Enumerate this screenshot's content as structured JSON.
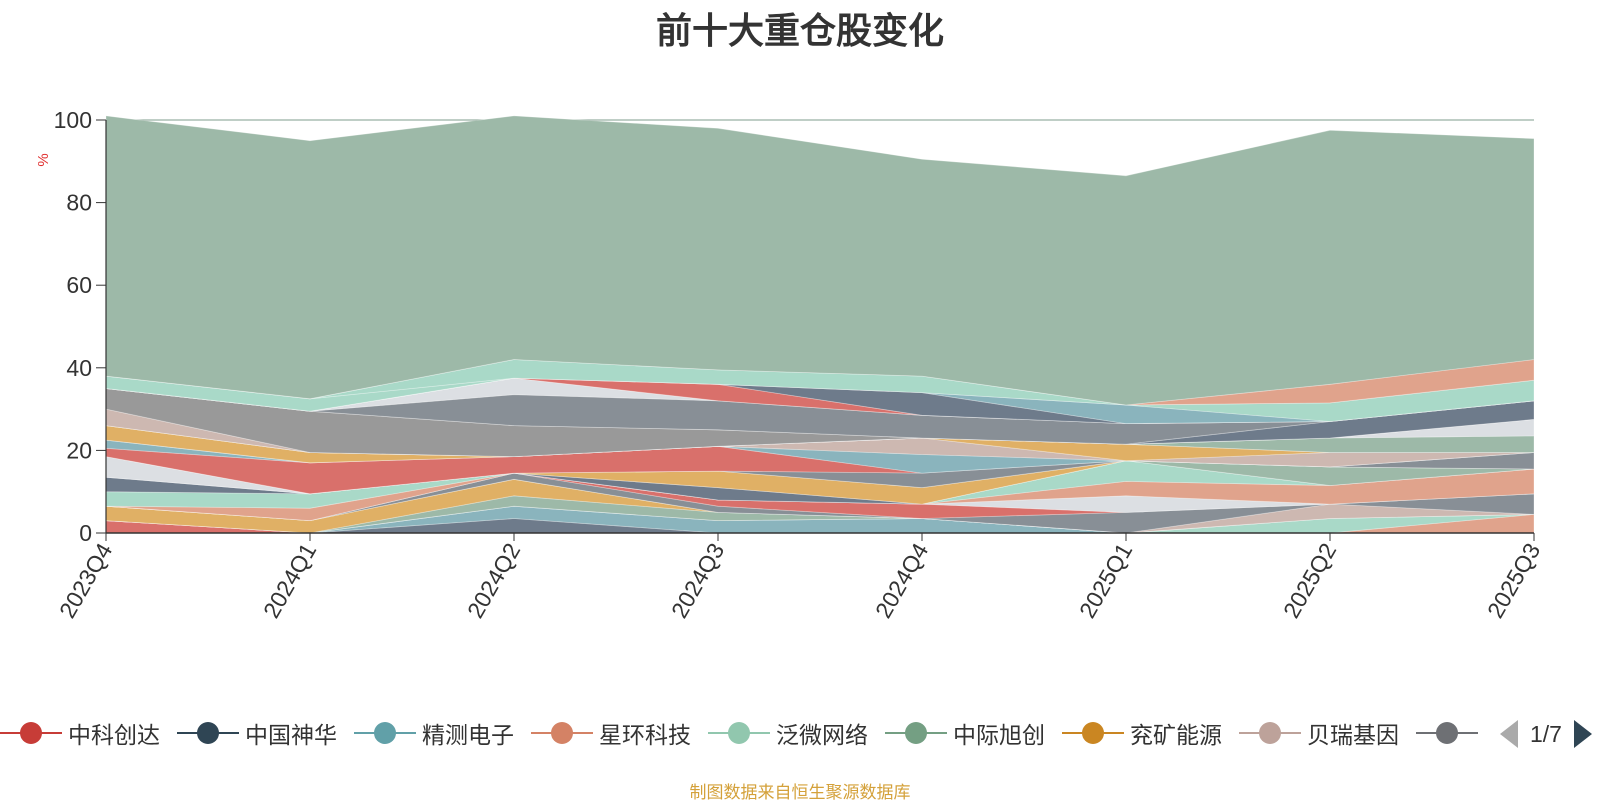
{
  "chart_data": {
    "type": "area",
    "title": "前十大重仓股变化",
    "ylabel": "%",
    "ylim": [
      0,
      100
    ],
    "yticks": [
      0,
      20,
      40,
      60,
      80,
      100
    ],
    "grid": true,
    "stacked": true,
    "legend_position": "bottom",
    "categories": [
      "2023Q4",
      "2024Q1",
      "2024Q2",
      "2024Q3",
      "2024Q4",
      "2025Q1",
      "2025Q2",
      "2025Q3"
    ],
    "series": [
      {
        "name": "中科创达",
        "color": "#d9706b",
        "values": [
          3.0,
          0,
          0,
          0,
          0,
          0,
          0,
          0
        ]
      },
      {
        "name": "中国神华",
        "color": "#6e7b8b",
        "values": [
          0,
          0,
          3.5,
          0,
          0,
          0,
          0,
          0
        ]
      },
      {
        "name": "精测电子",
        "color": "#8ab4bd",
        "values": [
          0,
          0,
          3.0,
          3.0,
          3.5,
          0,
          0,
          0
        ]
      },
      {
        "name": "星环科技",
        "color": "#e0a38c",
        "values": [
          0,
          0,
          0,
          0,
          0,
          0,
          0,
          4.5
        ]
      },
      {
        "name": "泛微网络",
        "color": "#a9d9c8",
        "values": [
          0,
          0,
          0,
          0,
          0,
          0,
          3.5,
          0
        ]
      },
      {
        "name": "中际旭创",
        "color": "#9db9a8",
        "values": [
          0,
          0,
          2.5,
          2.0,
          0,
          0,
          0,
          0
        ]
      },
      {
        "name": "兖矿能源",
        "color": "#e0b065",
        "values": [
          3.5,
          3.0,
          4.0,
          0,
          0,
          0,
          0,
          0
        ]
      },
      {
        "name": "贝瑞基因",
        "color": "#cdb8b1",
        "values": [
          0,
          0,
          0,
          0,
          0,
          0,
          3.5,
          0
        ]
      },
      {
        "name": "",
        "color": "#888f96",
        "values": [
          0,
          0,
          1.5,
          1.5,
          0,
          5.0,
          0,
          5.0
        ]
      },
      {
        "name": "",
        "color": "#d9706b",
        "values": [
          0,
          0,
          0,
          1.5,
          3.5,
          0,
          0,
          0
        ]
      },
      {
        "name": "",
        "color": "#dcdfe3",
        "values": [
          0,
          0,
          0,
          0,
          0,
          4.0,
          0,
          0
        ]
      },
      {
        "name": "",
        "color": "#e0a38c",
        "values": [
          0,
          3.0,
          0,
          0,
          0,
          3.5,
          4.5,
          6.0
        ]
      },
      {
        "name": "",
        "color": "#a9d9c8",
        "values": [
          3.5,
          3.5,
          0,
          0,
          0,
          5.0,
          0,
          0
        ]
      },
      {
        "name": "",
        "color": "#6e7b8b",
        "values": [
          3.5,
          0,
          0,
          3.0,
          0,
          0,
          0,
          0
        ]
      },
      {
        "name": "",
        "color": "#9db9a8",
        "values": [
          0,
          0,
          0,
          0,
          0,
          0,
          4.5,
          0
        ]
      },
      {
        "name": "",
        "color": "#e0b065",
        "values": [
          0,
          0,
          0,
          4.0,
          4.0,
          0,
          0,
          0
        ]
      },
      {
        "name": "",
        "color": "#dcdfe3",
        "values": [
          5.0,
          0,
          0,
          0,
          0,
          0,
          0,
          0
        ]
      },
      {
        "name": "",
        "color": "#888f96",
        "values": [
          0,
          0,
          0,
          0,
          3.5,
          0,
          0,
          4.0
        ]
      },
      {
        "name": "",
        "color": "#d9706b",
        "values": [
          2.0,
          7.5,
          4.0,
          6.0,
          0,
          0,
          0,
          0
        ]
      },
      {
        "name": "",
        "color": "#8ab4bd",
        "values": [
          2.0,
          0,
          0,
          0,
          4.5,
          0,
          0,
          0
        ]
      },
      {
        "name": "",
        "color": "#cdb8b1",
        "values": [
          0,
          0,
          0,
          0,
          4.0,
          0,
          3.5,
          0
        ]
      },
      {
        "name": "",
        "color": "#e0b065",
        "values": [
          3.5,
          2.5,
          0,
          0,
          0,
          4.0,
          0,
          0
        ]
      },
      {
        "name": "",
        "color": "#a9d9c8",
        "values": [
          0,
          0,
          0,
          0,
          0,
          0,
          0,
          0
        ]
      },
      {
        "name": "",
        "color": "#9db9a8",
        "values": [
          0,
          0,
          0,
          0,
          0,
          0,
          3.5,
          4.0
        ]
      },
      {
        "name": "",
        "color": "#dcdfe3",
        "values": [
          0,
          0,
          0,
          0,
          0,
          0,
          0,
          4.0
        ]
      },
      {
        "name": "",
        "color": "#cdb8b1",
        "values": [
          4.0,
          0,
          0,
          0,
          0,
          0,
          0,
          0
        ]
      },
      {
        "name": "",
        "color": "#999999",
        "values": [
          5.0,
          10.0,
          7.5,
          4.0,
          0,
          0,
          0,
          0
        ]
      },
      {
        "name": "",
        "color": "#6e7b8b",
        "values": [
          0,
          0,
          0,
          0,
          0,
          0,
          4.0,
          4.5
        ]
      },
      {
        "name": "",
        "color": "#888f96",
        "values": [
          0,
          0,
          7.5,
          7.0,
          5.5,
          5.0,
          0,
          0
        ]
      },
      {
        "name": "",
        "color": "#dcdfe3",
        "values": [
          0,
          0,
          4.0,
          0,
          0,
          0,
          0,
          0
        ]
      },
      {
        "name": "",
        "color": "#d9706b",
        "values": [
          0,
          0,
          0,
          4.0,
          0,
          0,
          0,
          0
        ]
      },
      {
        "name": "",
        "color": "#6e7b8b",
        "values": [
          0,
          0,
          0,
          0,
          5.5,
          0,
          0,
          0
        ]
      },
      {
        "name": "",
        "color": "#8ab4bd",
        "values": [
          0,
          0,
          0,
          0,
          0,
          4.5,
          0,
          0
        ]
      },
      {
        "name": "",
        "color": "#a9d9c8",
        "values": [
          3.0,
          3.0,
          0,
          0,
          0,
          0,
          4.5,
          5.0
        ]
      },
      {
        "name": "",
        "color": "#a9d9c8",
        "values": [
          0,
          0,
          4.5,
          3.5,
          4.0,
          0,
          0,
          0
        ]
      },
      {
        "name": "",
        "color": "#e0a38c",
        "values": [
          0,
          0,
          0,
          0,
          0,
          0,
          4.5,
          5.0
        ]
      },
      {
        "name": "",
        "color": "#9db9a8",
        "values": [
          63.0,
          62.5,
          59.0,
          58.5,
          52.5,
          55.5,
          61.5,
          53.5
        ]
      }
    ]
  },
  "legend": {
    "items": [
      {
        "name": "中科创达",
        "color": "#c73c37"
      },
      {
        "name": "中国神华",
        "color": "#2f4554"
      },
      {
        "name": "精测电子",
        "color": "#61a0a8"
      },
      {
        "name": "星环科技",
        "color": "#d48265"
      },
      {
        "name": "泛微网络",
        "color": "#91c7ae"
      },
      {
        "name": "中际旭创",
        "color": "#749f83"
      },
      {
        "name": "兖矿能源",
        "color": "#ca8622"
      },
      {
        "name": "贝瑞基因",
        "color": "#bda29a"
      },
      {
        "name": "",
        "color": "#6e7074"
      }
    ],
    "page_indicator": "1/7"
  },
  "source_note": "制图数据来自恒生聚源数据库",
  "colors": {
    "axis": "#333333",
    "grid": "#7f9c8c",
    "pager_active": "#2f4554",
    "pager_inactive": "#aaaaaa",
    "ylabel": "#e03030",
    "source_note": "#d4a13a"
  }
}
